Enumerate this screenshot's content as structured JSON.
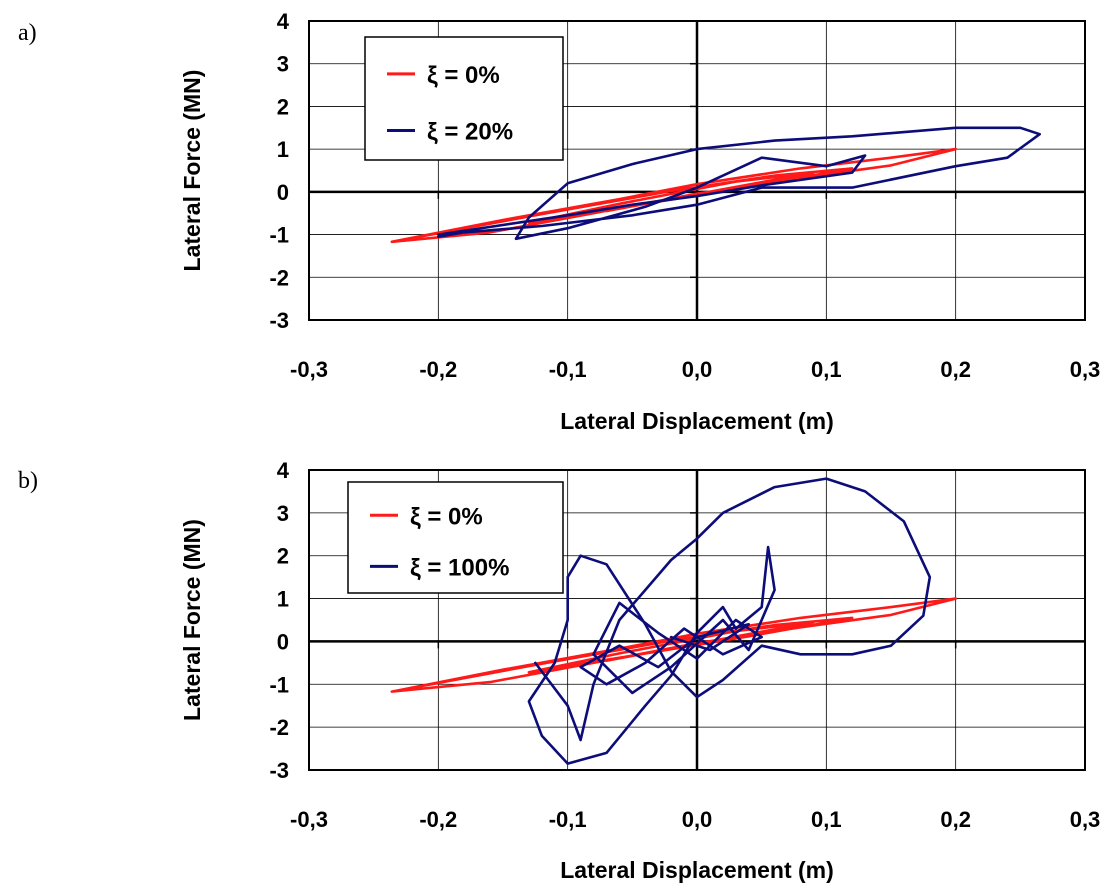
{
  "chart_data": [
    {
      "panel": "a)",
      "type": "line",
      "xlabel": "Lateral Displacement (m)",
      "ylabel": "Lateral Force (MN)",
      "xlim": [
        -0.3,
        0.3
      ],
      "ylim": [
        -3,
        4
      ],
      "x_ticks": [
        "-0,3",
        "-0,2",
        "-0,1",
        "0,0",
        "0,1",
        "0,2",
        "0,3"
      ],
      "y_ticks": [
        "-3",
        "-2",
        "-1",
        "0",
        "1",
        "2",
        "3",
        "4"
      ],
      "grid": true,
      "legend": "top-left",
      "series": [
        {
          "name": "ξ = 0%",
          "color": "#ff1a1a",
          "points": [
            [
              -0.236,
              -1.17
            ],
            [
              -0.15,
              -0.66
            ],
            [
              -0.06,
              -0.17
            ],
            [
              0.0,
              0.18
            ],
            [
              0.08,
              0.55
            ],
            [
              0.15,
              0.8
            ],
            [
              0.2,
              1.0
            ],
            [
              0.15,
              0.62
            ],
            [
              0.08,
              0.33
            ],
            [
              0.0,
              -0.04
            ],
            [
              -0.08,
              -0.5
            ],
            [
              -0.16,
              -0.95
            ],
            [
              -0.236,
              -1.17
            ],
            [
              -0.12,
              -0.52
            ],
            [
              -0.02,
              0.02
            ],
            [
              0.06,
              0.38
            ],
            [
              0.12,
              0.55
            ],
            [
              0.04,
              0.12
            ],
            [
              -0.05,
              -0.33
            ],
            [
              -0.13,
              -0.72
            ],
            [
              -0.06,
              -0.28
            ],
            [
              0.03,
              0.24
            ],
            [
              0.09,
              0.45
            ],
            [
              0.02,
              0.06
            ],
            [
              -0.07,
              -0.45
            ]
          ]
        },
        {
          "name": "ξ = 20%",
          "color": "#0d0d7a",
          "points": [
            [
              -0.2,
              -1.0
            ],
            [
              -0.1,
              -0.55
            ],
            [
              -0.05,
              -0.3
            ],
            [
              0.0,
              -0.1
            ],
            [
              0.05,
              0.15
            ],
            [
              0.12,
              0.45
            ],
            [
              0.13,
              0.85
            ],
            [
              0.1,
              0.6
            ],
            [
              0.05,
              0.8
            ],
            [
              0.0,
              0.1
            ],
            [
              -0.04,
              -0.35
            ],
            [
              -0.1,
              -0.85
            ],
            [
              -0.14,
              -1.1
            ],
            [
              -0.13,
              -0.6
            ],
            [
              -0.1,
              0.2
            ],
            [
              -0.05,
              0.65
            ],
            [
              0.0,
              1.0
            ],
            [
              0.06,
              1.2
            ],
            [
              0.12,
              1.3
            ],
            [
              0.2,
              1.5
            ],
            [
              0.25,
              1.5
            ],
            [
              0.265,
              1.35
            ],
            [
              0.24,
              0.8
            ],
            [
              0.2,
              0.6
            ],
            [
              0.12,
              0.1
            ],
            [
              0.05,
              0.1
            ],
            [
              0.0,
              -0.3
            ],
            [
              -0.05,
              -0.55
            ],
            [
              -0.12,
              -0.8
            ],
            [
              -0.18,
              -0.95
            ],
            [
              -0.2,
              -1.05
            ]
          ]
        }
      ]
    },
    {
      "panel": "b)",
      "type": "line",
      "xlabel": "Lateral Displacement (m)",
      "ylabel": "Lateral Force (MN)",
      "xlim": [
        -0.3,
        0.3
      ],
      "ylim": [
        -3,
        4
      ],
      "x_ticks": [
        "-0,3",
        "-0,2",
        "-0,1",
        "0,0",
        "0,1",
        "0,2",
        "0,3"
      ],
      "y_ticks": [
        "-3",
        "-2",
        "-1",
        "0",
        "1",
        "2",
        "3",
        "4"
      ],
      "grid": true,
      "legend": "top-left",
      "series": [
        {
          "name": "ξ = 0%",
          "color": "#ff1a1a",
          "points": [
            [
              -0.236,
              -1.17
            ],
            [
              -0.15,
              -0.66
            ],
            [
              -0.06,
              -0.17
            ],
            [
              0.0,
              0.18
            ],
            [
              0.08,
              0.55
            ],
            [
              0.15,
              0.8
            ],
            [
              0.2,
              1.0
            ],
            [
              0.15,
              0.62
            ],
            [
              0.08,
              0.33
            ],
            [
              0.0,
              -0.04
            ],
            [
              -0.08,
              -0.5
            ],
            [
              -0.16,
              -0.95
            ],
            [
              -0.236,
              -1.17
            ],
            [
              -0.12,
              -0.52
            ],
            [
              -0.02,
              0.02
            ],
            [
              0.06,
              0.38
            ],
            [
              0.12,
              0.55
            ],
            [
              0.04,
              0.12
            ],
            [
              -0.05,
              -0.33
            ],
            [
              -0.13,
              -0.72
            ],
            [
              -0.06,
              -0.28
            ],
            [
              0.03,
              0.24
            ],
            [
              0.09,
              0.45
            ],
            [
              0.02,
              0.06
            ],
            [
              -0.07,
              -0.45
            ]
          ]
        },
        {
          "name": "ξ = 100%",
          "color": "#0d0d7a",
          "points": [
            [
              -0.125,
              -0.5
            ],
            [
              -0.1,
              -1.5
            ],
            [
              -0.09,
              -2.3
            ],
            [
              -0.08,
              -1.0
            ],
            [
              -0.06,
              0.5
            ],
            [
              -0.04,
              1.2
            ],
            [
              -0.02,
              1.9
            ],
            [
              0.0,
              2.4
            ],
            [
              0.02,
              3.0
            ],
            [
              0.06,
              3.6
            ],
            [
              0.1,
              3.8
            ],
            [
              0.13,
              3.5
            ],
            [
              0.16,
              2.8
            ],
            [
              0.18,
              1.5
            ],
            [
              0.175,
              0.6
            ],
            [
              0.15,
              -0.1
            ],
            [
              0.12,
              -0.3
            ],
            [
              0.08,
              -0.3
            ],
            [
              0.05,
              -0.1
            ],
            [
              0.02,
              -0.9
            ],
            [
              0.0,
              -1.3
            ],
            [
              -0.02,
              -0.7
            ],
            [
              -0.04,
              0.4
            ],
            [
              -0.07,
              1.8
            ],
            [
              -0.09,
              2.0
            ],
            [
              -0.1,
              1.5
            ],
            [
              -0.1,
              0.5
            ],
            [
              -0.11,
              -0.5
            ],
            [
              -0.13,
              -1.4
            ],
            [
              -0.12,
              -2.2
            ],
            [
              -0.1,
              -2.85
            ],
            [
              -0.07,
              -2.6
            ],
            [
              -0.04,
              -1.5
            ],
            [
              -0.02,
              -0.8
            ],
            [
              0.0,
              0.2
            ],
            [
              0.02,
              0.8
            ],
            [
              0.03,
              0.3
            ],
            [
              0.05,
              0.8
            ],
            [
              0.055,
              2.2
            ],
            [
              0.06,
              1.2
            ],
            [
              0.04,
              -0.2
            ],
            [
              0.02,
              0.5
            ],
            [
              -0.02,
              -0.6
            ],
            [
              -0.05,
              -1.2
            ],
            [
              -0.08,
              -0.3
            ],
            [
              -0.06,
              0.9
            ],
            [
              -0.03,
              0.2
            ],
            [
              0.0,
              -0.4
            ],
            [
              0.03,
              0.5
            ],
            [
              0.05,
              0.1
            ],
            [
              0.02,
              -0.3
            ],
            [
              -0.01,
              0.3
            ],
            [
              -0.04,
              -0.5
            ],
            [
              -0.07,
              -1.0
            ],
            [
              -0.09,
              -0.6
            ],
            [
              -0.06,
              -0.1
            ],
            [
              -0.03,
              -0.6
            ],
            [
              0.0,
              0.1
            ],
            [
              0.04,
              0.4
            ],
            [
              0.01,
              -0.2
            ],
            [
              -0.02,
              0.1
            ]
          ]
        }
      ]
    }
  ]
}
